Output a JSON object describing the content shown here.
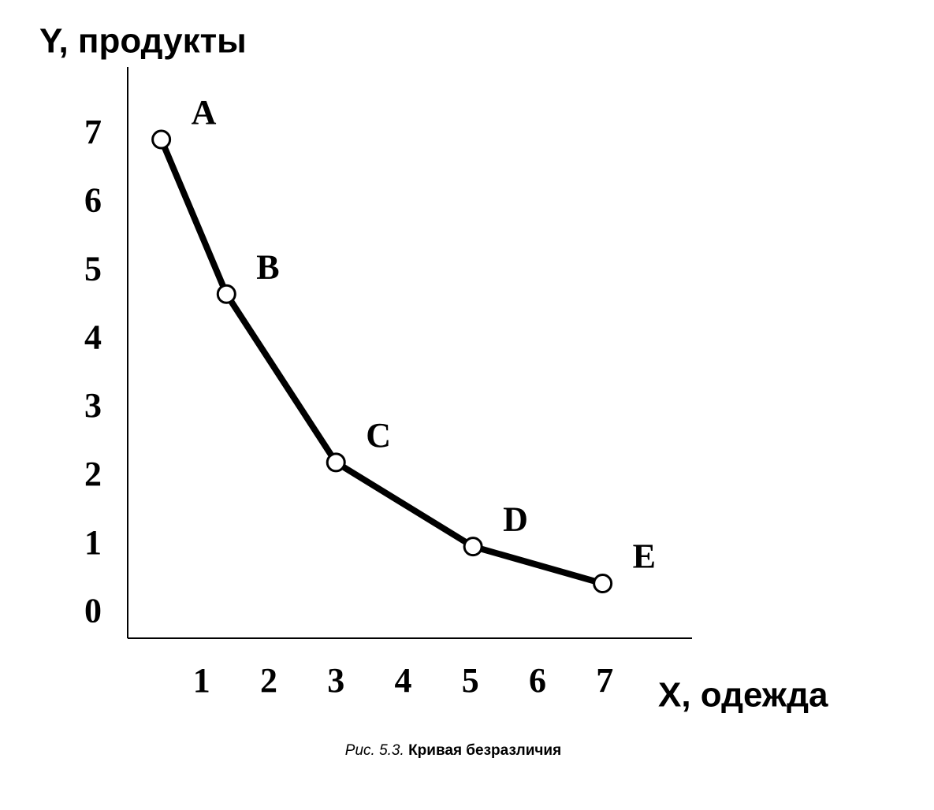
{
  "chart_data": {
    "type": "line",
    "y_label": "Y, продукты",
    "x_label": "X, одежда",
    "caption_number": "Рис. 5.3.",
    "caption": "Кривая безразличия",
    "x": [
      0.4,
      1.37,
      3.0,
      5.04,
      6.97
    ],
    "values": [
      6.94,
      4.68,
      2.22,
      0.99,
      0.45
    ],
    "point_labels": [
      "A",
      "B",
      "C",
      "D",
      "E"
    ],
    "color": "#000000",
    "xlim": [
      -0.1,
      8.3
    ],
    "ylim": [
      -0.35,
      8
    ],
    "xticks": [
      1,
      2,
      3,
      4,
      5,
      6,
      7
    ],
    "yticks": [
      0,
      1,
      2,
      3,
      4,
      5,
      6,
      7
    ],
    "grid": false
  }
}
